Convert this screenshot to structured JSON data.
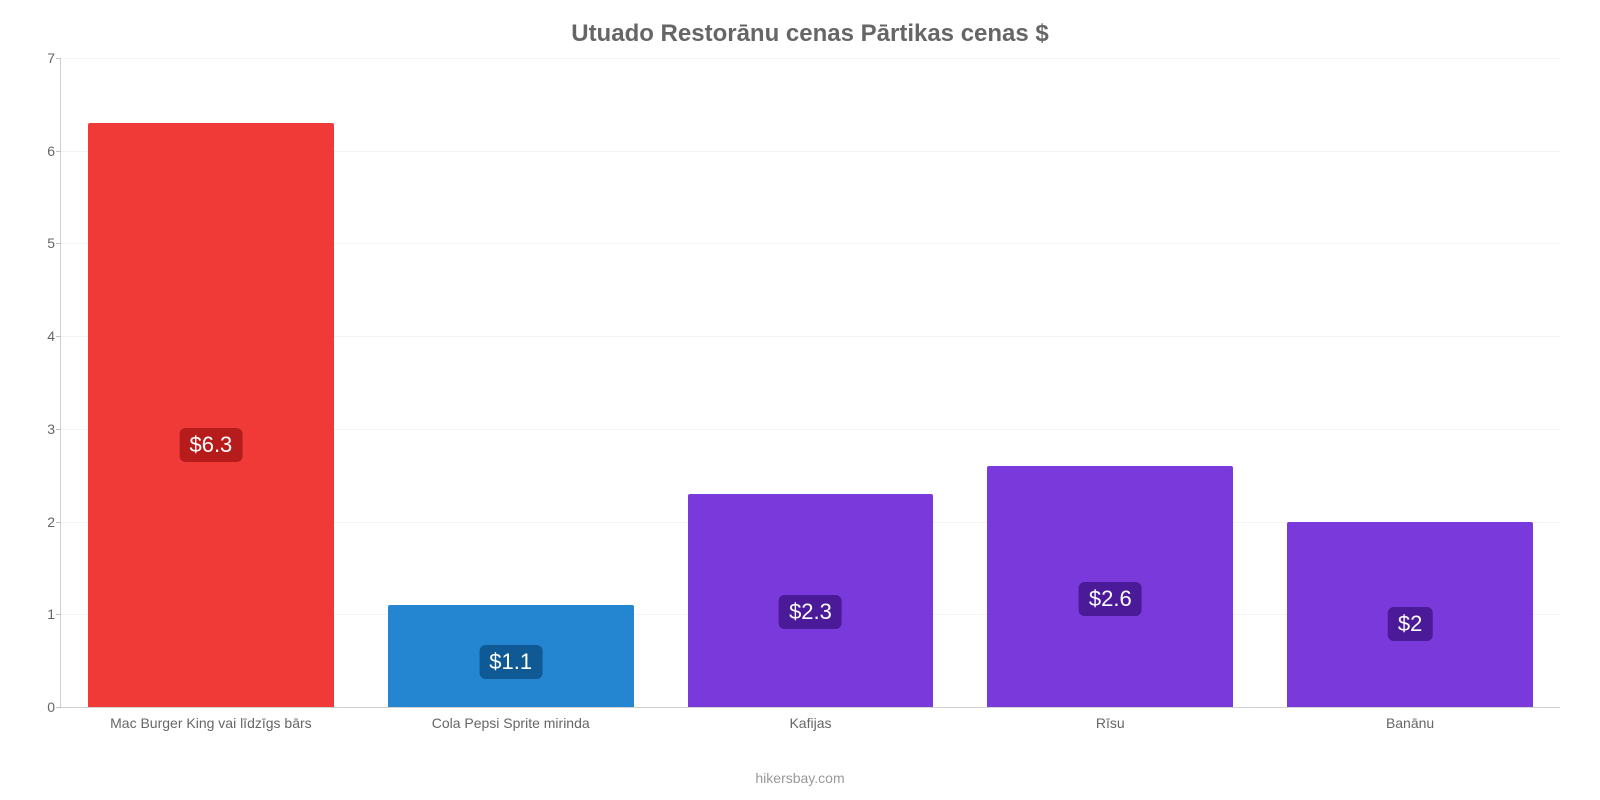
{
  "chart": {
    "type": "bar",
    "title": "Utuado Restorānu cenas Pārtikas cenas $",
    "title_fontsize": 24,
    "title_color": "#666666",
    "background_color": "#ffffff",
    "grid_color": "#f5f2f2",
    "axis_color": "#d0d0d0",
    "tick_label_color": "#666666",
    "tick_label_fontsize": 14,
    "ylim_min": 0,
    "ylim_max": 7,
    "ytick_step": 1,
    "yticks": [
      0,
      1,
      2,
      3,
      4,
      5,
      6,
      7
    ],
    "categories": [
      "Mac Burger King vai līdzīgs bārs",
      "Cola Pepsi Sprite mirinda",
      "Kafijas",
      "Rīsu",
      "Banānu"
    ],
    "values": [
      6.3,
      1.1,
      2.3,
      2.6,
      2.0
    ],
    "value_labels": [
      "$6.3",
      "$1.1",
      "$2.3",
      "$2.6",
      "$2"
    ],
    "bar_colors": [
      "#ef3a38",
      "#2485d0",
      "#7a3adb",
      "#7a3adb",
      "#7a3adb"
    ],
    "label_bg_colors": [
      "#b71c1c",
      "#0f5a94",
      "#4a1a99",
      "#4a1a99",
      "#4a1a99"
    ],
    "label_fontsize": 22,
    "label_text_color": "#ffffff",
    "bar_width_pct": 82,
    "attribution": "hikersbay.com",
    "attribution_color": "#999999",
    "attribution_fontsize": 14
  }
}
